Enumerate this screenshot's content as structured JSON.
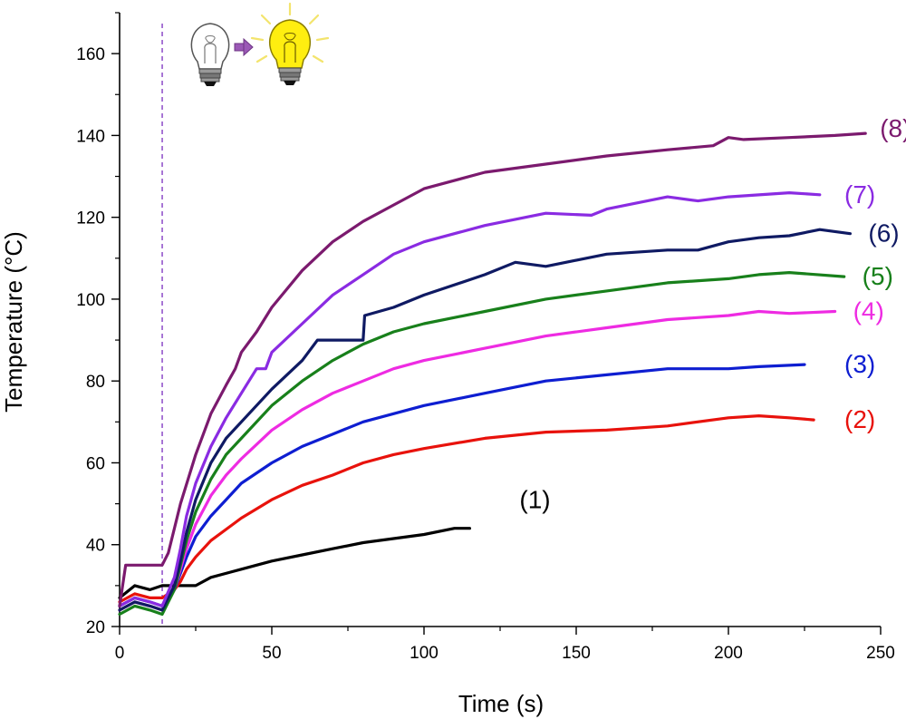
{
  "chart_data": {
    "type": "line",
    "title": "",
    "xlabel": "Time (s)",
    "ylabel": "Temperature (°C)",
    "xlim": [
      0,
      250
    ],
    "ylim": [
      20,
      170
    ],
    "xticks": [
      0,
      50,
      100,
      150,
      200,
      250
    ],
    "yticks": [
      20,
      40,
      60,
      80,
      100,
      120,
      140,
      160
    ],
    "grid": false,
    "legend": "none",
    "annotations": {
      "marker_time": 14,
      "icons": [
        "light-bulb-off-icon",
        "arrow-right-icon",
        "light-bulb-on-icon"
      ]
    },
    "series": [
      {
        "name": "(1)",
        "color": "#000000",
        "x": [
          0,
          5,
          10,
          14,
          20,
          25,
          30,
          40,
          50,
          60,
          70,
          80,
          90,
          100,
          110,
          115
        ],
        "y": [
          27,
          30,
          29,
          30,
          30,
          30,
          32,
          34,
          36,
          37.5,
          39,
          40.5,
          41.5,
          42.5,
          44,
          44
        ]
      },
      {
        "name": "(2)",
        "color": "#e8120c",
        "x": [
          0,
          5,
          10,
          14,
          18,
          20,
          22,
          25,
          30,
          40,
          50,
          60,
          70,
          80,
          90,
          100,
          120,
          140,
          160,
          180,
          200,
          210,
          220,
          228
        ],
        "y": [
          26,
          28,
          27,
          27,
          29,
          31,
          34,
          37,
          41,
          46.5,
          51,
          54.5,
          57,
          60,
          62,
          63.5,
          66,
          67.5,
          68,
          69,
          71,
          71.5,
          71,
          70.5
        ]
      },
      {
        "name": "(3)",
        "color": "#0e1ed1",
        "x": [
          0,
          5,
          10,
          14,
          18,
          20,
          22,
          25,
          30,
          35,
          40,
          50,
          60,
          70,
          80,
          90,
          100,
          120,
          140,
          160,
          180,
          200,
          210,
          225
        ],
        "y": [
          25,
          27,
          26,
          25,
          29,
          33,
          37,
          42,
          47,
          51,
          55,
          60,
          64,
          67,
          70,
          72,
          74,
          77,
          80,
          81.5,
          83,
          83,
          83.5,
          84
        ]
      },
      {
        "name": "(4)",
        "color": "#ee2be2",
        "x": [
          0,
          5,
          10,
          14,
          18,
          20,
          22,
          25,
          30,
          35,
          40,
          50,
          60,
          70,
          80,
          90,
          100,
          120,
          140,
          160,
          180,
          200,
          210,
          220,
          235
        ],
        "y": [
          24,
          26,
          25,
          24,
          29,
          34,
          39,
          45,
          52,
          57,
          61,
          68,
          73,
          77,
          80,
          83,
          85,
          88,
          91,
          93,
          95,
          96,
          97,
          96.5,
          97
        ]
      },
      {
        "name": "(5)",
        "color": "#18801b",
        "x": [
          0,
          5,
          10,
          14,
          18,
          20,
          22,
          25,
          30,
          35,
          40,
          50,
          60,
          70,
          80,
          90,
          100,
          120,
          140,
          160,
          180,
          200,
          210,
          220,
          238
        ],
        "y": [
          23,
          25,
          24,
          23,
          29,
          35,
          41,
          48,
          56,
          62,
          66,
          74,
          80,
          85,
          89,
          92,
          94,
          97,
          100,
          102,
          104,
          105,
          106,
          106.5,
          105.5
        ]
      },
      {
        "name": "(6)",
        "color": "#0f1a63",
        "x": [
          0,
          5,
          10,
          14,
          18,
          20,
          22,
          25,
          30,
          35,
          40,
          50,
          60,
          65,
          80,
          80.5,
          90,
          100,
          120,
          130,
          140,
          160,
          180,
          190,
          200,
          210,
          220,
          230,
          240
        ],
        "y": [
          24,
          26,
          25,
          24,
          30,
          36,
          43,
          51,
          60,
          66,
          70,
          78,
          85,
          90,
          90,
          96,
          98,
          101,
          106,
          109,
          108,
          111,
          112,
          112,
          114,
          115,
          115.5,
          117,
          116
        ]
      },
      {
        "name": "(7)",
        "color": "#8a2be2",
        "x": [
          0,
          5,
          10,
          14,
          18,
          20,
          22,
          25,
          30,
          35,
          40,
          45,
          48,
          50,
          60,
          70,
          80,
          90,
          100,
          120,
          140,
          155,
          160,
          180,
          190,
          200,
          220,
          230
        ],
        "y": [
          25,
          27,
          26,
          25,
          32,
          39,
          47,
          55,
          64,
          71,
          77,
          83,
          83,
          87,
          94,
          101,
          106,
          111,
          114,
          118,
          121,
          120.5,
          122,
          125,
          124,
          125,
          126,
          125.5
        ]
      },
      {
        "name": "(8)",
        "color": "#7b1a6e",
        "x": [
          0,
          2,
          5,
          10,
          14,
          16,
          18,
          20,
          25,
          30,
          35,
          38,
          40,
          45,
          50,
          60,
          70,
          80,
          90,
          100,
          120,
          140,
          160,
          180,
          195,
          200,
          205,
          220,
          235,
          245
        ],
        "y": [
          25,
          35,
          35,
          35,
          35,
          38,
          44,
          50,
          62,
          72,
          79,
          83,
          87,
          92,
          98,
          107,
          114,
          119,
          123,
          127,
          131,
          133,
          135,
          136.5,
          137.5,
          139.5,
          139,
          139.5,
          140,
          140.5
        ]
      }
    ]
  }
}
